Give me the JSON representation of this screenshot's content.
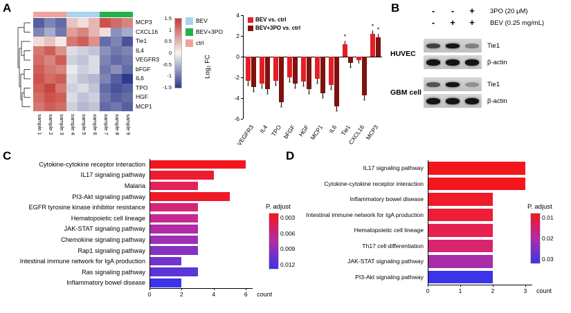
{
  "panel_labels": {
    "a": "A",
    "b": "B",
    "c": "C",
    "d": "D"
  },
  "chart_data": [
    {
      "id": "heatmap",
      "type": "heatmap",
      "genes": [
        "MCP3",
        "CXCL16",
        "Tie1",
        "IL4",
        "VEGFR3",
        "bFGF",
        "IL6",
        "TPO",
        "HGF",
        "MCP1"
      ],
      "samples": [
        "sample 1",
        "sample 2",
        "sample 3",
        "sample 4",
        "sample 5",
        "sample 6",
        "sample 7",
        "sample 8",
        "sample 9"
      ],
      "column_groups": [
        {
          "name": "ctrl",
          "color": "#f2a29c",
          "cols": 3
        },
        {
          "name": "BEV",
          "color": "#a9d3ee",
          "cols": 3
        },
        {
          "name": "BEV+3PO",
          "color": "#25b04b",
          "cols": 3
        }
      ],
      "legend": [
        {
          "name": "BEV",
          "color": "#a9d3ee"
        },
        {
          "name": "BEV+3PO",
          "color": "#25b04b"
        },
        {
          "name": "ctrl",
          "color": "#f2a29c"
        }
      ],
      "scale": {
        "ticks": [
          "1.5",
          "1",
          "0.5",
          "0",
          "-0.5",
          "-1",
          "-1.5"
        ],
        "high": "#c43a32",
        "mid": "#f7f5f2",
        "low": "#2e3a8c",
        "min": -1.5,
        "max": 1.5
      },
      "values": [
        [
          -1.2,
          -0.9,
          -1.1,
          0.4,
          0.2,
          0.5,
          1.3,
          1.1,
          0.9
        ],
        [
          -0.9,
          -0.6,
          -1.0,
          0.7,
          0.9,
          0.5,
          0.2,
          -0.8,
          -0.6
        ],
        [
          0.2,
          0.4,
          0.1,
          1.0,
          1.2,
          0.8,
          -1.1,
          -0.9,
          -1.3
        ],
        [
          1.0,
          1.2,
          0.8,
          -0.2,
          -0.3,
          -0.4,
          -0.8,
          -1.0,
          -0.9
        ],
        [
          1.1,
          0.9,
          1.2,
          -0.3,
          -0.4,
          -0.2,
          -0.9,
          -1.1,
          -1.0
        ],
        [
          1.2,
          1.0,
          0.9,
          -0.1,
          -0.3,
          -0.2,
          -1.0,
          -0.8,
          -1.1
        ],
        [
          1.3,
          1.1,
          1.2,
          -0.2,
          -0.4,
          -0.5,
          -0.9,
          -1.2,
          -1.5
        ],
        [
          1.2,
          1.4,
          1.0,
          -0.3,
          -0.2,
          -0.4,
          -1.1,
          -1.3,
          -1.2
        ],
        [
          1.1,
          1.3,
          1.2,
          -0.2,
          -0.4,
          -0.3,
          -1.0,
          -1.2,
          -1.1
        ],
        [
          1.0,
          1.2,
          1.1,
          -0.3,
          -0.5,
          -0.4,
          -1.1,
          -1.0,
          -1.2
        ]
      ]
    },
    {
      "id": "log2fc",
      "type": "bar",
      "ylabel": "Log₂ FC",
      "ylim": [
        -6,
        4
      ],
      "yticks": [
        4,
        2,
        0,
        -2,
        -4,
        -6
      ],
      "categories": [
        "VEGFR3",
        "IL4",
        "TPO",
        "bFGF",
        "HGF",
        "MCP1",
        "IL6",
        "Tie1",
        "CXCL16",
        "MCP3"
      ],
      "series": [
        {
          "name": "BEV vs. ctrl",
          "color": "#e21f26",
          "values": [
            -2.3,
            -2.6,
            -2.3,
            -2.0,
            -2.4,
            -2.1,
            -2.7,
            1.2,
            -0.3,
            2.2
          ],
          "sig": [
            "*",
            "*",
            "*",
            "*",
            "*",
            "*",
            "*",
            "*",
            "",
            "*"
          ]
        },
        {
          "name": "BEV+3PO vs. ctrl",
          "color": "#7e120e",
          "values": [
            -2.9,
            -3.1,
            -4.4,
            -2.6,
            -3.1,
            -3.5,
            -4.8,
            -0.6,
            -3.7,
            1.9
          ],
          "sig": [
            "*",
            "*",
            "*",
            "*",
            "*",
            "*",
            "*",
            "*",
            "*",
            "*"
          ]
        }
      ]
    },
    {
      "id": "kegg_bev",
      "type": "bar",
      "orientation": "horizontal",
      "xlabel": "count",
      "xticks": [
        0,
        2,
        4,
        6
      ],
      "xlim": [
        0,
        6
      ],
      "categories": [
        "Cytokine-cytokine receptor interaction",
        "IL17 signaling pathway",
        "Malaria",
        "PI3-Akt signaling pathway",
        "EGFR tyrosine kinase inhibitor resistance",
        "Hematopoietic cell lineage",
        "JAK-STAT signaling pathway",
        "Chemokine signaling pathway",
        "Rap1 signaling pathway",
        "Intestinal immune network for IgA production",
        "Ras signaling pathway",
        "Inflammatory bowel disease"
      ],
      "values": [
        6,
        4,
        3,
        5,
        3,
        3,
        3,
        3,
        3,
        2,
        3,
        2
      ],
      "colors": [
        "#f2161d",
        "#ee1c31",
        "#e42159",
        "#ef1a27",
        "#d62579",
        "#c62a92",
        "#b02da6",
        "#9b30b4",
        "#8632c1",
        "#7234cc",
        "#5b35d6",
        "#3b34e8"
      ],
      "legend": {
        "title": "P. adjust",
        "ticks": [
          "0.003",
          "0.006",
          "0.009",
          "0.012"
        ],
        "gradient": [
          "#f2161d",
          "#b02da6",
          "#3b34e8"
        ]
      }
    },
    {
      "id": "kegg_bev3po",
      "type": "bar",
      "orientation": "horizontal",
      "xlabel": "count",
      "xticks": [
        0,
        1,
        2,
        3
      ],
      "xlim": [
        0,
        3
      ],
      "categories": [
        "IL17 signaling pathway",
        "Cytokine-cytokine receptor interaction",
        "Inflammatory bowel disease",
        "Intestinal immune network for IgA production",
        "Hematopoietic cell lineage",
        "Th17 cell differentiation",
        "JAK-STAT signaling pathway",
        "PI3-Akt signaling pathway"
      ],
      "values": [
        3,
        3,
        2,
        2,
        2,
        2,
        2,
        2
      ],
      "colors": [
        "#f2161d",
        "#f2161d",
        "#ee1c2a",
        "#ec1e38",
        "#e62050",
        "#d9256e",
        "#a92da8",
        "#3b34e8"
      ],
      "legend": {
        "title": "P. adjust",
        "ticks": [
          "0.01",
          "0.02",
          "0.03"
        ],
        "gradient": [
          "#f2161d",
          "#b02da6",
          "#3b34e8"
        ]
      }
    }
  ],
  "western": {
    "conditions": [
      {
        "signs": [
          "-",
          "-",
          "+"
        ],
        "label": "3PO (20 μM)"
      },
      {
        "signs": [
          "-",
          "+",
          "+"
        ],
        "label": "BEV (0.25 mg/mL)"
      }
    ],
    "groups": [
      {
        "name": "HUVEC",
        "blots": [
          {
            "protein": "Tie1",
            "bands": [
              0.75,
              1,
              0.4
            ]
          },
          {
            "protein": "β-actin",
            "bands": [
              1,
              1,
              1
            ]
          }
        ]
      },
      {
        "name": "GBM cell",
        "blots": [
          {
            "protein": "Tie1",
            "bands": [
              0.65,
              1,
              0.3
            ]
          },
          {
            "protein": "β-actin",
            "bands": [
              1,
              1,
              1
            ]
          }
        ]
      }
    ]
  }
}
